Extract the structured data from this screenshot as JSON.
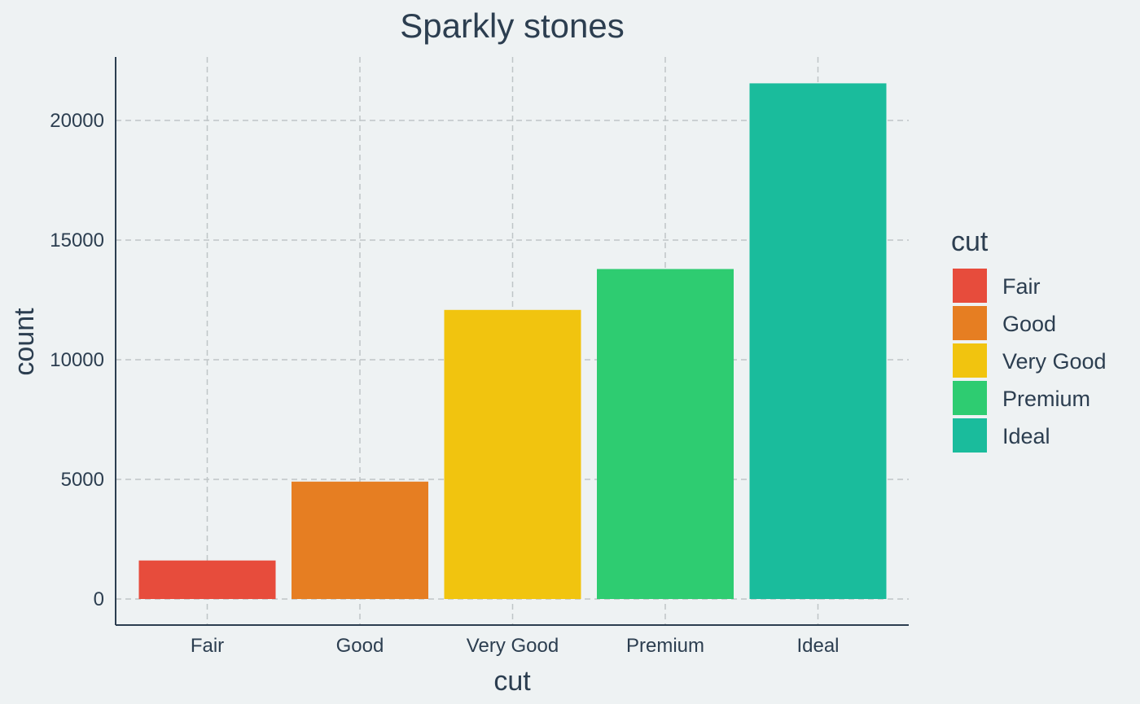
{
  "chart_data": {
    "type": "bar",
    "title": "Sparkly stones",
    "xlabel": "cut",
    "ylabel": "count",
    "categories": [
      "Fair",
      "Good",
      "Very Good",
      "Premium",
      "Ideal"
    ],
    "values": [
      1610,
      4906,
      12082,
      13791,
      21551
    ],
    "colors": [
      "#e74c3c",
      "#e67e22",
      "#f1c40f",
      "#2ecc71",
      "#1abc9c"
    ],
    "ylim": [
      0,
      22500
    ],
    "yticks": [
      0,
      5000,
      10000,
      15000,
      20000
    ],
    "grid": true,
    "legend": {
      "title": "cut",
      "placement": "right",
      "entries": [
        "Fair",
        "Good",
        "Very Good",
        "Premium",
        "Ideal"
      ]
    }
  }
}
